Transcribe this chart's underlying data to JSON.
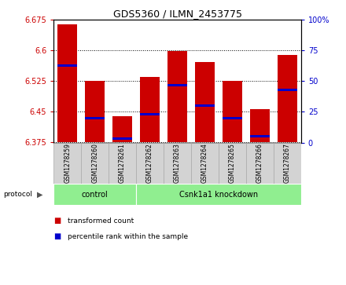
{
  "title": "GDS5360 / ILMN_2453775",
  "samples": [
    "GSM1278259",
    "GSM1278260",
    "GSM1278261",
    "GSM1278262",
    "GSM1278263",
    "GSM1278264",
    "GSM1278265",
    "GSM1278266",
    "GSM1278267"
  ],
  "bar_values": [
    6.665,
    6.525,
    6.44,
    6.535,
    6.598,
    6.572,
    6.525,
    6.456,
    6.59
  ],
  "bar_base": 6.375,
  "percentile_values": [
    63,
    20,
    3,
    23,
    47,
    30,
    20,
    5,
    43
  ],
  "ylim": [
    6.375,
    6.675
  ],
  "yticks": [
    6.375,
    6.45,
    6.525,
    6.6,
    6.675
  ],
  "right_yticks": [
    0,
    25,
    50,
    75,
    100
  ],
  "bar_color": "#cc0000",
  "percentile_color": "#0000cc",
  "protocol_groups": [
    {
      "label": "control",
      "start": 0,
      "end": 2
    },
    {
      "label": "Csnk1a1 knockdown",
      "start": 3,
      "end": 8
    }
  ],
  "protocol_bg_color": "#90ee90",
  "sample_bg_color": "#d3d3d3",
  "left_label_color": "#cc0000",
  "right_label_color": "#0000cc",
  "bar_width": 0.7,
  "fig_width": 4.4,
  "fig_height": 3.63,
  "dpi": 100
}
